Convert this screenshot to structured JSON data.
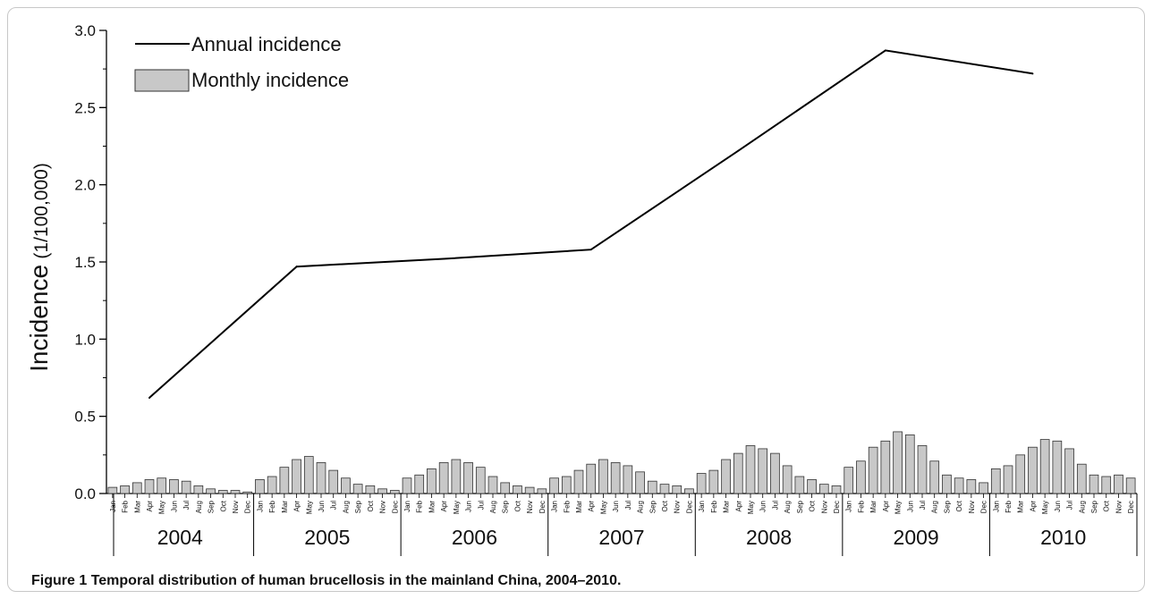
{
  "figure": {
    "caption_label": "Figure 1",
    "caption_text": "Temporal distribution of human brucellosis in the mainland China, 2004–2010."
  },
  "chart_data": {
    "type": "bar",
    "ylabel_main": "Incidence",
    "ylabel_unit": "(1/100,000)",
    "ylim": [
      0,
      3.0
    ],
    "yticks": [
      "0.0",
      "0.5",
      "1.0",
      "1.5",
      "2.0",
      "2.5",
      "3.0"
    ],
    "months": [
      "Jan",
      "Feb",
      "Mar",
      "Apr",
      "May",
      "Jun",
      "Jul",
      "Aug",
      "Sep",
      "Oct",
      "Nov",
      "Dec"
    ],
    "years": [
      "2004",
      "2005",
      "2006",
      "2007",
      "2008",
      "2009",
      "2010"
    ],
    "legend": {
      "placement": "top-left",
      "line_label": "Annual incidence",
      "bar_label": "Monthly incidence"
    },
    "colors": {
      "bar_fill": "#c8c8c8",
      "bar_stroke": "#333333",
      "line": "#000000"
    },
    "series": [
      {
        "name": "Monthly incidence",
        "type": "bar",
        "values": [
          0.04,
          0.05,
          0.07,
          0.09,
          0.1,
          0.09,
          0.08,
          0.05,
          0.03,
          0.02,
          0.02,
          0.01,
          0.09,
          0.11,
          0.17,
          0.22,
          0.24,
          0.2,
          0.15,
          0.1,
          0.06,
          0.05,
          0.03,
          0.02,
          0.1,
          0.12,
          0.16,
          0.2,
          0.22,
          0.2,
          0.17,
          0.11,
          0.07,
          0.05,
          0.04,
          0.03,
          0.1,
          0.11,
          0.15,
          0.19,
          0.22,
          0.2,
          0.18,
          0.14,
          0.08,
          0.06,
          0.05,
          0.03,
          0.13,
          0.15,
          0.22,
          0.26,
          0.31,
          0.29,
          0.26,
          0.18,
          0.11,
          0.09,
          0.06,
          0.05,
          0.17,
          0.21,
          0.3,
          0.34,
          0.4,
          0.38,
          0.31,
          0.21,
          0.12,
          0.1,
          0.09,
          0.07,
          0.16,
          0.18,
          0.25,
          0.3,
          0.35,
          0.34,
          0.29,
          0.19,
          0.12,
          0.11,
          0.12,
          0.1
        ]
      },
      {
        "name": "Annual incidence",
        "type": "line",
        "x": [
          "2004",
          "2005",
          "2006",
          "2007",
          "2008",
          "2009",
          "2010"
        ],
        "values": [
          0.62,
          1.47,
          1.52,
          1.58,
          2.22,
          2.87,
          2.72
        ]
      }
    ]
  }
}
